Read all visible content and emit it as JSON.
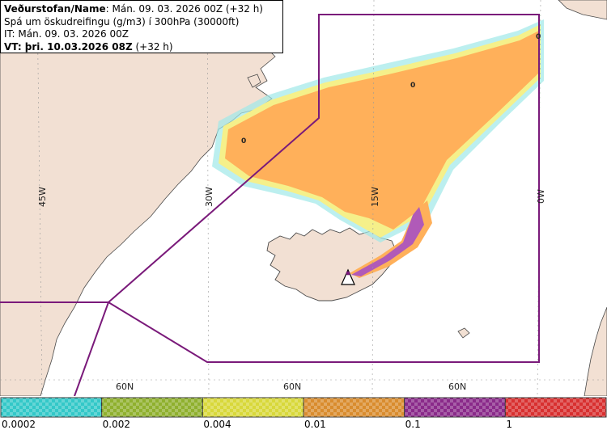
{
  "header": {
    "line1_bold": "Veðurstofan/Name",
    "line1_rest": ": Mán. 09. 03. 2026 00Z (+32 h)",
    "line2": "Spá um öskudreifingu (g/m3) í 300hPa (30000ft)",
    "line3": "IT: Mán. 09. 03. 2026 00Z",
    "line4_bold": "VT: þri. 10.03.2026 08Z",
    "line4_rest": " (+32 h)"
  },
  "map": {
    "longitude_labels": [
      "45W",
      "30W",
      "15W",
      "0W"
    ],
    "latitude_labels": [
      "60N",
      "60N",
      "60N"
    ],
    "zero_markers": [
      "0",
      "0",
      "0"
    ],
    "colors": {
      "land": "#f2e0d3",
      "sea": "#ffffff",
      "boundary": "#7a1a7a",
      "ash_low": "#ffb05a",
      "ash_fringe_yellow": "#f5f08a",
      "ash_fringe_cyan": "#9fe8e8",
      "ash_high": "#b05ab8"
    },
    "volcano_symbol": "triangle-warning"
  },
  "colorbar": {
    "ticks": [
      "0.0002",
      "0.002",
      "0.004",
      "0.01",
      "0.1",
      "1"
    ],
    "segments": [
      {
        "color": "#33c8c8"
      },
      {
        "color": "#8fb02e"
      },
      {
        "color": "#d8d83a"
      },
      {
        "color": "#d98c2e"
      },
      {
        "color": "#8a2a8a"
      },
      {
        "color": "#d83030"
      }
    ]
  }
}
